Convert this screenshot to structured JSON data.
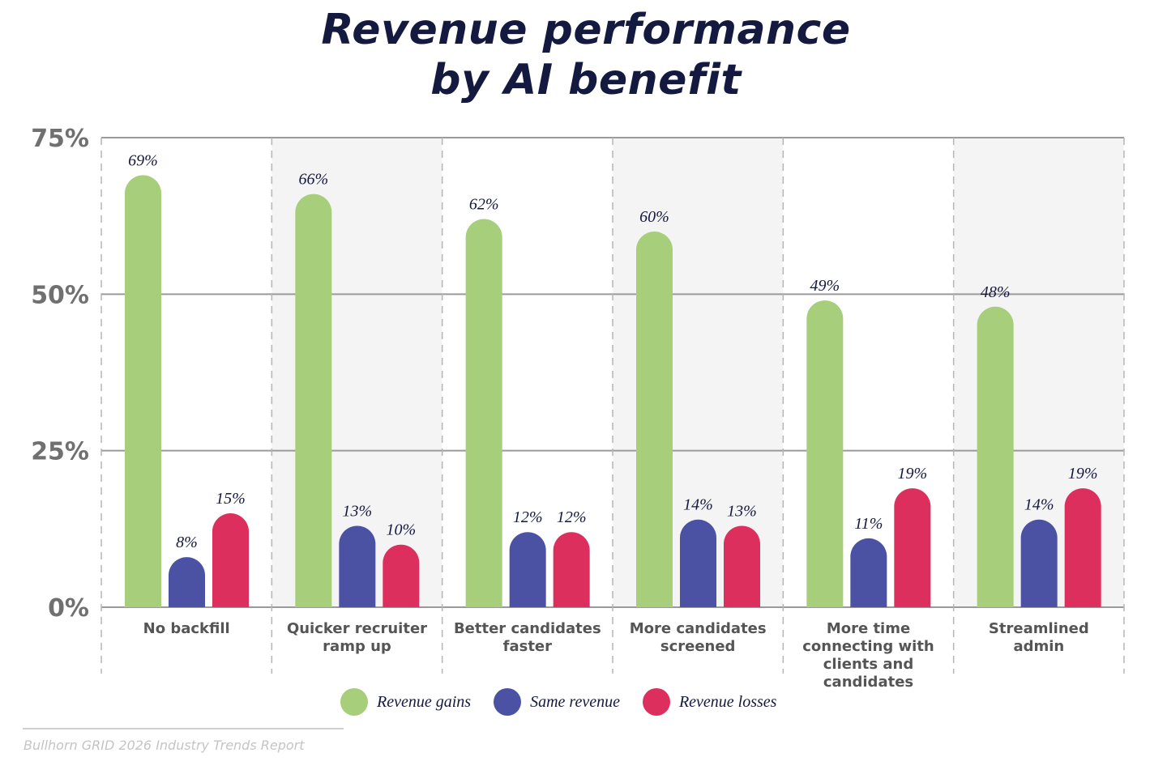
{
  "title_lines": [
    "Revenue performance",
    "by AI benefit"
  ],
  "source": "Bullhorn GRID 2026 Industry Trends Report",
  "chart_data": {
    "type": "bar",
    "title": "Revenue performance by AI benefit",
    "categories": [
      "No backfill",
      "Quicker recruiter ramp up",
      "Better candidates faster",
      "More candidates screened",
      "More time connecting with clients and candidates",
      "Streamlined admin"
    ],
    "series": [
      {
        "name": "Revenue gains",
        "color": "#a6ce7b",
        "values": [
          69,
          66,
          62,
          60,
          49,
          48
        ]
      },
      {
        "name": "Same revenue",
        "color": "#4b52a3",
        "values": [
          8,
          13,
          12,
          14,
          11,
          14
        ]
      },
      {
        "name": "Revenue losses",
        "color": "#dc2f5e",
        "values": [
          15,
          10,
          12,
          13,
          19,
          19
        ]
      }
    ],
    "ylim": [
      0,
      75
    ],
    "yticks": [
      0,
      25,
      50,
      75
    ],
    "ytick_labels": [
      "0%",
      "25%",
      "50%",
      "75%"
    ],
    "value_suffix": "%",
    "grid": true,
    "legend": "bottom",
    "alternate_column_shading": "#f4f4f4"
  }
}
